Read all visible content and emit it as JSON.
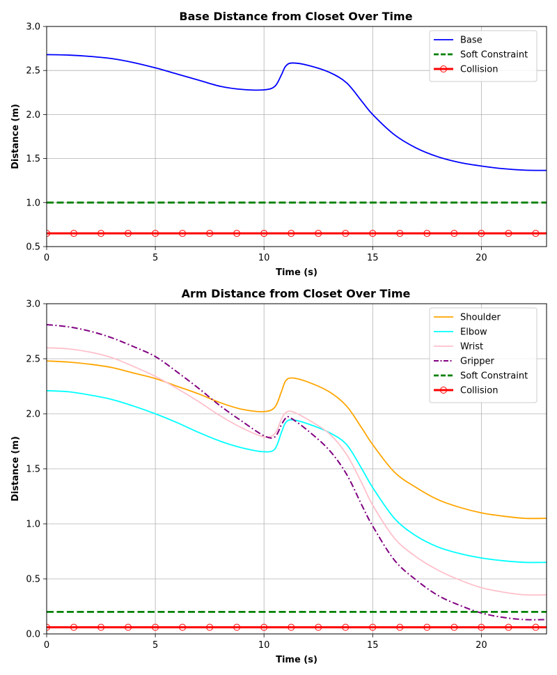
{
  "chart_data": [
    {
      "type": "line",
      "title": "Base Distance from Closet Over Time",
      "xlabel": "Time (s)",
      "ylabel": "Distance (m)",
      "xlim": [
        0,
        23
      ],
      "ylim": [
        0.5,
        3.0
      ],
      "xticks": [
        0,
        5,
        10,
        15,
        20
      ],
      "yticks": [
        0.5,
        1.0,
        1.5,
        2.0,
        2.5,
        3.0
      ],
      "grid": true,
      "legend": "top-right",
      "series": [
        {
          "name": "Base",
          "color": "#0000ff",
          "style": "solid",
          "points": [
            [
              0,
              2.68
            ],
            [
              1,
              2.675
            ],
            [
              2,
              2.66
            ],
            [
              3,
              2.635
            ],
            [
              4,
              2.59
            ],
            [
              5,
              2.53
            ],
            [
              6,
              2.46
            ],
            [
              7,
              2.39
            ],
            [
              8,
              2.32
            ],
            [
              9,
              2.285
            ],
            [
              10,
              2.28
            ],
            [
              10.5,
              2.32
            ],
            [
              10.8,
              2.45
            ],
            [
              11,
              2.55
            ],
            [
              11.3,
              2.585
            ],
            [
              12,
              2.56
            ],
            [
              13,
              2.48
            ],
            [
              13.8,
              2.36
            ],
            [
              14.5,
              2.15
            ],
            [
              15,
              2.0
            ],
            [
              16,
              1.77
            ],
            [
              17,
              1.62
            ],
            [
              18,
              1.52
            ],
            [
              19,
              1.455
            ],
            [
              20,
              1.415
            ],
            [
              21,
              1.385
            ],
            [
              22,
              1.368
            ],
            [
              23,
              1.365
            ]
          ]
        },
        {
          "name": "Soft Constraint",
          "color": "#008000",
          "style": "dashed",
          "points": [
            [
              0,
              1.0
            ],
            [
              23,
              1.0
            ]
          ]
        },
        {
          "name": "Collision",
          "color": "#ff0000",
          "style": "solid-marker",
          "marker_x": [
            0,
            1.25,
            2.5,
            3.75,
            5,
            6.25,
            7.5,
            8.75,
            10,
            11.25,
            12.5,
            13.75,
            15,
            16.25,
            17.5,
            18.75,
            20,
            21.25,
            22.5
          ],
          "points": [
            [
              0,
              0.65
            ],
            [
              23,
              0.65
            ]
          ]
        }
      ]
    },
    {
      "type": "line",
      "title": "Arm Distance from Closet Over Time",
      "xlabel": "Time (s)",
      "ylabel": "Distance (m)",
      "xlim": [
        0,
        23
      ],
      "ylim": [
        0.0,
        3.0
      ],
      "xticks": [
        0,
        5,
        10,
        15,
        20
      ],
      "yticks": [
        0.0,
        0.5,
        1.0,
        1.5,
        2.0,
        2.5,
        3.0
      ],
      "grid": true,
      "legend": "top-right",
      "series": [
        {
          "name": "Shoulder",
          "color": "#ffa500",
          "style": "solid",
          "points": [
            [
              0,
              2.48
            ],
            [
              1,
              2.47
            ],
            [
              2,
              2.45
            ],
            [
              3,
              2.42
            ],
            [
              4,
              2.37
            ],
            [
              5,
              2.32
            ],
            [
              6,
              2.25
            ],
            [
              7,
              2.18
            ],
            [
              8,
              2.1
            ],
            [
              9,
              2.04
            ],
            [
              10,
              2.02
            ],
            [
              10.5,
              2.06
            ],
            [
              10.8,
              2.2
            ],
            [
              11,
              2.3
            ],
            [
              11.3,
              2.325
            ],
            [
              12,
              2.29
            ],
            [
              13,
              2.2
            ],
            [
              13.8,
              2.07
            ],
            [
              14.5,
              1.87
            ],
            [
              15,
              1.72
            ],
            [
              16,
              1.47
            ],
            [
              17,
              1.33
            ],
            [
              18,
              1.22
            ],
            [
              19,
              1.15
            ],
            [
              20,
              1.1
            ],
            [
              21,
              1.07
            ],
            [
              22,
              1.05
            ],
            [
              23,
              1.05
            ]
          ]
        },
        {
          "name": "Elbow",
          "color": "#00ffff",
          "style": "solid",
          "points": [
            [
              0,
              2.21
            ],
            [
              1,
              2.2
            ],
            [
              2,
              2.17
            ],
            [
              3,
              2.13
            ],
            [
              4,
              2.07
            ],
            [
              5,
              2.0
            ],
            [
              6,
              1.92
            ],
            [
              7,
              1.83
            ],
            [
              8,
              1.75
            ],
            [
              9,
              1.69
            ],
            [
              10,
              1.655
            ],
            [
              10.5,
              1.68
            ],
            [
              10.8,
              1.83
            ],
            [
              11,
              1.92
            ],
            [
              11.3,
              1.945
            ],
            [
              12,
              1.91
            ],
            [
              13,
              1.83
            ],
            [
              13.8,
              1.72
            ],
            [
              14.5,
              1.5
            ],
            [
              15,
              1.33
            ],
            [
              16,
              1.05
            ],
            [
              17,
              0.89
            ],
            [
              18,
              0.79
            ],
            [
              19,
              0.73
            ],
            [
              20,
              0.69
            ],
            [
              21,
              0.665
            ],
            [
              22,
              0.65
            ],
            [
              23,
              0.65
            ]
          ]
        },
        {
          "name": "Wrist",
          "color": "#ffc0cb",
          "style": "solid",
          "points": [
            [
              0,
              2.6
            ],
            [
              1,
              2.59
            ],
            [
              2,
              2.56
            ],
            [
              3,
              2.51
            ],
            [
              4,
              2.43
            ],
            [
              5,
              2.34
            ],
            [
              6,
              2.23
            ],
            [
              7,
              2.11
            ],
            [
              8,
              1.98
            ],
            [
              9,
              1.87
            ],
            [
              10,
              1.79
            ],
            [
              10.5,
              1.82
            ],
            [
              10.8,
              1.95
            ],
            [
              11,
              2.01
            ],
            [
              11.3,
              2.02
            ],
            [
              12,
              1.95
            ],
            [
              13,
              1.82
            ],
            [
              13.8,
              1.63
            ],
            [
              14.5,
              1.37
            ],
            [
              15,
              1.17
            ],
            [
              16,
              0.87
            ],
            [
              17,
              0.7
            ],
            [
              18,
              0.58
            ],
            [
              19,
              0.49
            ],
            [
              20,
              0.42
            ],
            [
              21,
              0.38
            ],
            [
              22,
              0.355
            ],
            [
              23,
              0.355
            ]
          ]
        },
        {
          "name": "Gripper",
          "color": "#800080",
          "style": "dashdot",
          "points": [
            [
              0,
              2.81
            ],
            [
              1,
              2.79
            ],
            [
              2,
              2.75
            ],
            [
              3,
              2.69
            ],
            [
              4,
              2.61
            ],
            [
              5,
              2.52
            ],
            [
              6,
              2.38
            ],
            [
              7,
              2.23
            ],
            [
              8,
              2.07
            ],
            [
              9,
              1.93
            ],
            [
              10,
              1.8
            ],
            [
              10.5,
              1.79
            ],
            [
              10.8,
              1.9
            ],
            [
              11,
              1.96
            ],
            [
              11.2,
              1.965
            ],
            [
              12,
              1.85
            ],
            [
              13,
              1.67
            ],
            [
              13.8,
              1.45
            ],
            [
              14.5,
              1.17
            ],
            [
              15,
              0.98
            ],
            [
              16,
              0.67
            ],
            [
              17,
              0.49
            ],
            [
              18,
              0.35
            ],
            [
              19,
              0.26
            ],
            [
              20,
              0.19
            ],
            [
              21,
              0.15
            ],
            [
              22,
              0.13
            ],
            [
              23,
              0.13
            ]
          ]
        },
        {
          "name": "Soft Constraint",
          "color": "#008000",
          "style": "dashed",
          "points": [
            [
              0,
              0.2
            ],
            [
              23,
              0.2
            ]
          ]
        },
        {
          "name": "Collision",
          "color": "#ff0000",
          "style": "solid-marker",
          "marker_x": [
            0,
            1.25,
            2.5,
            3.75,
            5,
            6.25,
            7.5,
            8.75,
            10,
            11.25,
            12.5,
            13.75,
            15,
            16.25,
            17.5,
            18.75,
            20,
            21.25,
            22.5
          ],
          "points": [
            [
              0,
              0.06
            ],
            [
              23,
              0.06
            ]
          ]
        }
      ]
    }
  ]
}
